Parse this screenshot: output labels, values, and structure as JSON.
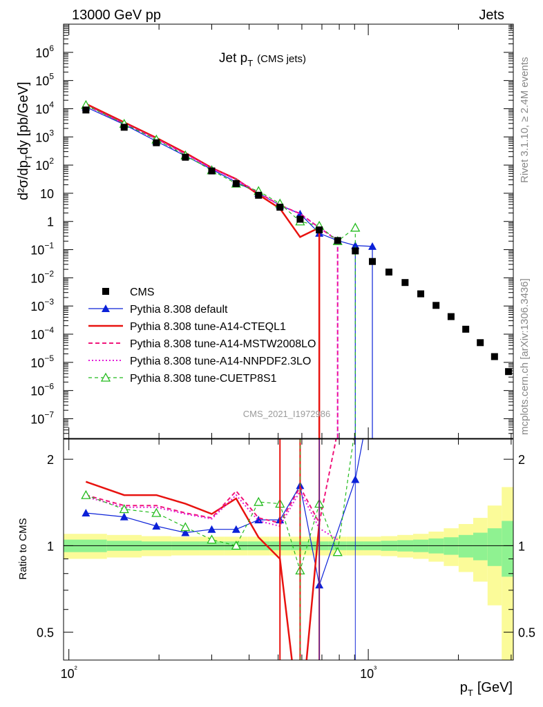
{
  "header": {
    "energy_label": "13000 GeV pp",
    "jets_label": "Jets"
  },
  "side_text": {
    "rivet": "Rivet 3.1.10, ≥ 2.4M events",
    "mcplots": "mcplots.cern.ch [arXiv:1306.3436]"
  },
  "watermark": "CMS_2021_I1972986",
  "main_title": "Jet p",
  "main_title_sub": "T",
  "main_title_paren": "(CMS jets)",
  "ylabel_main": "d²σ/dp",
  "ylabel_sub": "T",
  "ylabel_tail": "dy [pb/GeV]",
  "ylabel_ratio": "Ratio to CMS",
  "xlabel": "p",
  "xlabel_sub": "T",
  "xlabel_tail": "[GeV]",
  "chart_data": [
    {
      "type": "scatter",
      "panel": "main",
      "x_scale": "log",
      "y_scale": "log",
      "xlim": [
        96,
        3050
      ],
      "ylim": [
        2e-08,
        10000000.0
      ],
      "x_ticks": [
        {
          "value": 100,
          "label": "10²"
        },
        {
          "value": 1000,
          "label": "10³"
        }
      ],
      "y_ticks": [
        {
          "value": 1e-07,
          "base": "10",
          "exp": "−7"
        },
        {
          "value": 1e-06,
          "base": "10",
          "exp": "−6"
        },
        {
          "value": 1e-05,
          "base": "10",
          "exp": "−5"
        },
        {
          "value": 0.0001,
          "base": "10",
          "exp": "−4"
        },
        {
          "value": 0.001,
          "base": "10",
          "exp": "−3"
        },
        {
          "value": 0.01,
          "base": "10",
          "exp": "−2"
        },
        {
          "value": 0.1,
          "base": "10",
          "exp": "−1"
        },
        {
          "value": 1,
          "base": "1",
          "exp": ""
        },
        {
          "value": 10,
          "base": "10",
          "exp": ""
        },
        {
          "value": 100,
          "base": "10",
          "exp": "2"
        },
        {
          "value": 1000,
          "base": "10",
          "exp": "3"
        },
        {
          "value": 10000,
          "base": "10",
          "exp": "4"
        },
        {
          "value": 100000,
          "base": "10",
          "exp": "5"
        },
        {
          "value": 1000000,
          "base": "10",
          "exp": "6"
        }
      ],
      "legend_position": "bottom-left",
      "series": [
        {
          "name": "CMS",
          "color": "#000000",
          "style": "square",
          "x": [
            114,
            153,
            196,
            245,
            300,
            362,
            430,
            507,
            592,
            686,
            790,
            905,
            1032,
            1172,
            1327,
            1497,
            1684,
            1890,
            2116,
            2366,
            2640,
            2940
          ],
          "y": [
            9000,
            2200,
            620,
            190,
            62,
            22,
            8.5,
            3.2,
            1.2,
            0.5,
            0.21,
            0.09,
            0.038,
            0.016,
            0.0068,
            0.0027,
            0.00105,
            0.00042,
            0.00015,
            5e-05,
            1.6e-05,
            4.7e-06
          ]
        },
        {
          "name": "Pythia 8.308 default",
          "color": "#0b21d8",
          "style": "triangle",
          "x": [
            114,
            153,
            196,
            245,
            300,
            362,
            430,
            507,
            592,
            686,
            790,
            905,
            1032
          ],
          "y": [
            11500,
            2750,
            700,
            210,
            70,
            25,
            10,
            3.8,
            1.85,
            0.38,
            0.21,
            0.14,
            0.13
          ]
        },
        {
          "name": "Pythia 8.308 tune-A14-CTEQL1",
          "color": "#e8120f",
          "style": "solid",
          "x": [
            114,
            153,
            196,
            245,
            300,
            362,
            430,
            507,
            592,
            686
          ],
          "y": [
            15000,
            3300,
            930,
            270,
            80,
            32,
            9,
            2.9,
            0.28,
            0.6
          ]
        },
        {
          "name": "Pythia 8.308 tune-A14-MSTW2008LO",
          "color": "#f0147a",
          "style": "dashed",
          "x": [
            114,
            153,
            196,
            245,
            300,
            362,
            430,
            507,
            592,
            686,
            790
          ],
          "y": [
            13500,
            3000,
            860,
            250,
            77,
            31,
            10.5,
            3.8,
            1.9,
            0.6,
            0.21
          ]
        },
        {
          "name": "Pythia 8.308 tune-A14-NNPDF2.3LO",
          "color": "#e21bd8",
          "style": "dotted",
          "x": [
            114,
            153,
            196,
            245,
            300,
            362,
            430,
            507,
            592,
            686,
            790
          ],
          "y": [
            13200,
            2950,
            840,
            245,
            76,
            30,
            10.2,
            3.7,
            1.85,
            0.6,
            0.22
          ]
        },
        {
          "name": "Pythia 8.308 tune-CUETP8S1",
          "color": "#22bb1c",
          "style": "dashed-open-triangle",
          "x": [
            114,
            153,
            196,
            245,
            300,
            362,
            430,
            507,
            592,
            686,
            790,
            905
          ],
          "y": [
            13500,
            2900,
            800,
            220,
            65,
            22,
            12,
            4.3,
            1.0,
            0.7,
            0.2,
            0.6
          ]
        }
      ]
    },
    {
      "type": "line",
      "panel": "ratio",
      "x_scale": "log",
      "y_scale": "log",
      "xlim": [
        96,
        3050
      ],
      "ylim": [
        0.4,
        2.35
      ],
      "ylabel": "Ratio to CMS",
      "y_ticks": [
        {
          "value": 0.5,
          "label": "0.5"
        },
        {
          "value": 1,
          "label": "1"
        },
        {
          "value": 2,
          "label": "2"
        }
      ],
      "band_edges": [
        96,
        134,
        175,
        220,
        272,
        330,
        396,
        468,
        549,
        639,
        738,
        847,
        968,
        1102,
        1250,
        1412,
        1590,
        1787,
        2003,
        2241,
        2503,
        2790,
        3050
      ],
      "band_inner": [
        0.05,
        0.04,
        0.035,
        0.035,
        0.035,
        0.035,
        0.035,
        0.035,
        0.035,
        0.035,
        0.035,
        0.035,
        0.035,
        0.04,
        0.045,
        0.05,
        0.06,
        0.07,
        0.09,
        0.11,
        0.15,
        0.22
      ],
      "band_outer": [
        0.1,
        0.09,
        0.08,
        0.075,
        0.075,
        0.075,
        0.075,
        0.075,
        0.075,
        0.075,
        0.075,
        0.075,
        0.075,
        0.08,
        0.09,
        0.1,
        0.12,
        0.15,
        0.19,
        0.25,
        0.38,
        0.6
      ],
      "series": [
        {
          "name": "Pythia 8.308 default",
          "x": [
            114,
            153,
            196,
            245,
            300,
            362,
            430,
            507,
            592,
            686,
            905,
            1032
          ],
          "y": [
            1.3,
            1.26,
            1.17,
            1.11,
            1.14,
            1.14,
            1.23,
            1.23,
            1.62,
            0.73,
            1.7,
            3.5
          ]
        },
        {
          "name": "Pythia 8.308 tune-A14-CTEQL1",
          "x": [
            114,
            153,
            196,
            245,
            300,
            362,
            430,
            507,
            592,
            686
          ],
          "y": [
            1.67,
            1.5,
            1.5,
            1.4,
            1.29,
            1.46,
            1.07,
            0.9,
            0.23,
            1.2
          ]
        },
        {
          "name": "Pythia 8.308 tune-A14-MSTW2008LO",
          "x": [
            114,
            153,
            196,
            245,
            300,
            362,
            430,
            507,
            592,
            686,
            790
          ],
          "y": [
            1.5,
            1.38,
            1.38,
            1.3,
            1.25,
            1.55,
            1.25,
            1.2,
            1.6,
            1.2,
            2.5
          ]
        },
        {
          "name": "Pythia 8.308 tune-A14-NNPDF2.3LO",
          "x": [
            114,
            153,
            196,
            245,
            300,
            362,
            430,
            507,
            592,
            686,
            790
          ],
          "y": [
            1.48,
            1.36,
            1.36,
            1.29,
            1.24,
            1.5,
            1.22,
            1.17,
            1.55,
            1.15,
            1.05
          ]
        },
        {
          "name": "Pythia 8.308 tune-CUETP8S1",
          "x": [
            114,
            153,
            196,
            245,
            300,
            362,
            430,
            507,
            592,
            686,
            790,
            905
          ],
          "y": [
            1.5,
            1.34,
            1.3,
            1.16,
            1.05,
            1.0,
            1.42,
            1.4,
            0.82,
            1.4,
            0.95,
            2.6
          ]
        }
      ]
    }
  ]
}
